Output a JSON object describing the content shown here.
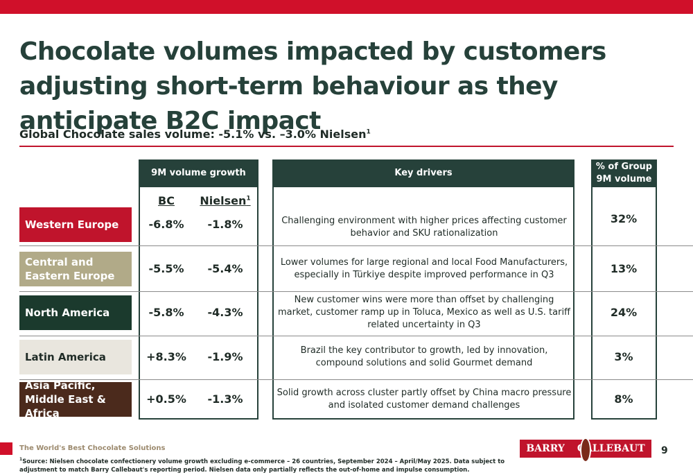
{
  "header": {
    "title": "Chocolate volumes impacted by customers adjusting short-term behaviour as they anticipate B2C impact",
    "subtitle": "Global Chocolate sales volume: -5.1% vs. –3.0% Nielsen",
    "subtitle_marker": "1"
  },
  "table": {
    "columns": {
      "growth": "9M volume growth",
      "drivers": "Key drivers",
      "share": "% of Group 9M volume",
      "bc": "BC",
      "nielsen": "Nielsen",
      "nielsen_marker": "1"
    },
    "rows": [
      {
        "region": "Western Europe",
        "bc": "-6.8%",
        "nielsen": "-1.8%",
        "drivers": "Challenging environment with higher prices affecting customer behavior and SKU rationalization",
        "share": "32%"
      },
      {
        "region": "Central and Eastern Europe",
        "bc": "-5.5%",
        "nielsen": "-5.4%",
        "drivers": "Lower volumes for large regional and local Food Manufacturers, especially in Türkiye despite improved performance in Q3",
        "share": "13%"
      },
      {
        "region": "North America",
        "bc": "-5.8%",
        "nielsen": "-4.3%",
        "drivers": "New customer wins were more than offset by challenging market, customer ramp up in Toluca, Mexico as well as U.S. tariff related uncertainty in Q3",
        "share": "24%"
      },
      {
        "region": "Latin America",
        "bc": "+8.3%",
        "nielsen": "-1.9%",
        "drivers": "Brazil the key contributor to growth, led by innovation, compound solutions and solid Gourmet demand",
        "share": "3%"
      },
      {
        "region": "Asia Pacific, Middle East & Africa",
        "bc": "+0.5%",
        "nielsen": "-1.3%",
        "drivers": "Solid growth across cluster partly offset by China macro pressure and isolated customer demand challenges",
        "share": "8%"
      }
    ]
  },
  "footer": {
    "tagline": "The World's Best Chocolate Solutions",
    "footnote_marker": "1",
    "footnote": "Source: Nielsen chocolate confectionery volume growth excluding e-commerce – 26 countries, September 2024 – April/May 2025. Data subject to adjustment to match Barry Callebaut's reporting period. Nielsen data only partially reflects the out-of-home and impulse consumption.",
    "logo_left": "BARRY",
    "logo_right": "CALLEBAUT",
    "page": "9"
  }
}
